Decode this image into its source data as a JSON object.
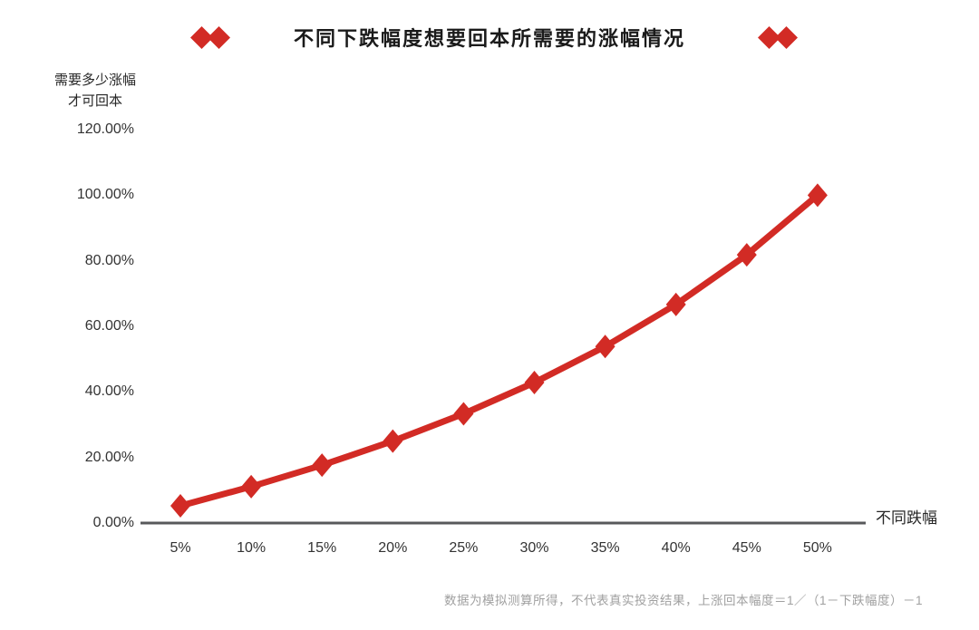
{
  "title": "不同下跌幅度想要回本所需要的涨幅情况",
  "colors": {
    "accent_red": "#D22B25",
    "axis_line": "#58595B",
    "tick_text": "#333333",
    "footer_text": "#A0A0A0"
  },
  "y_axis": {
    "header_line1": "需要多少涨幅",
    "header_line2": "才可回本",
    "tick_labels": [
      "0.00%",
      "20.00%",
      "40.00%",
      "60.00%",
      "80.00%",
      "100.00%",
      "120.00%"
    ]
  },
  "x_axis": {
    "title": "不同跌幅",
    "tick_labels": [
      "5%",
      "10%",
      "15%",
      "20%",
      "25%",
      "30%",
      "35%",
      "40%",
      "45%",
      "50%"
    ]
  },
  "footer": {
    "note": "数据为模拟测算所得，不代表真实投资结果，上涨回本幅度＝1／（1－下跌幅度）－1"
  },
  "chart_data": {
    "type": "line",
    "title": "不同下跌幅度想要回本所需要的涨幅情况",
    "xlabel": "不同跌幅",
    "ylabel": "需要多少涨幅才可回本",
    "categories": [
      "5%",
      "10%",
      "15%",
      "20%",
      "25%",
      "30%",
      "35%",
      "40%",
      "45%",
      "50%"
    ],
    "values": [
      5.26,
      11.11,
      17.65,
      25.0,
      33.33,
      42.86,
      53.85,
      66.67,
      81.82,
      100.0
    ],
    "y_ticks": [
      0,
      20,
      40,
      60,
      80,
      100,
      120
    ],
    "ylim": [
      0,
      120
    ],
    "marker": "diamond",
    "line_color": "#D22B25",
    "grid": false,
    "legend": false,
    "annotation": "上涨回本幅度＝1／（1－下跌幅度）－1"
  }
}
